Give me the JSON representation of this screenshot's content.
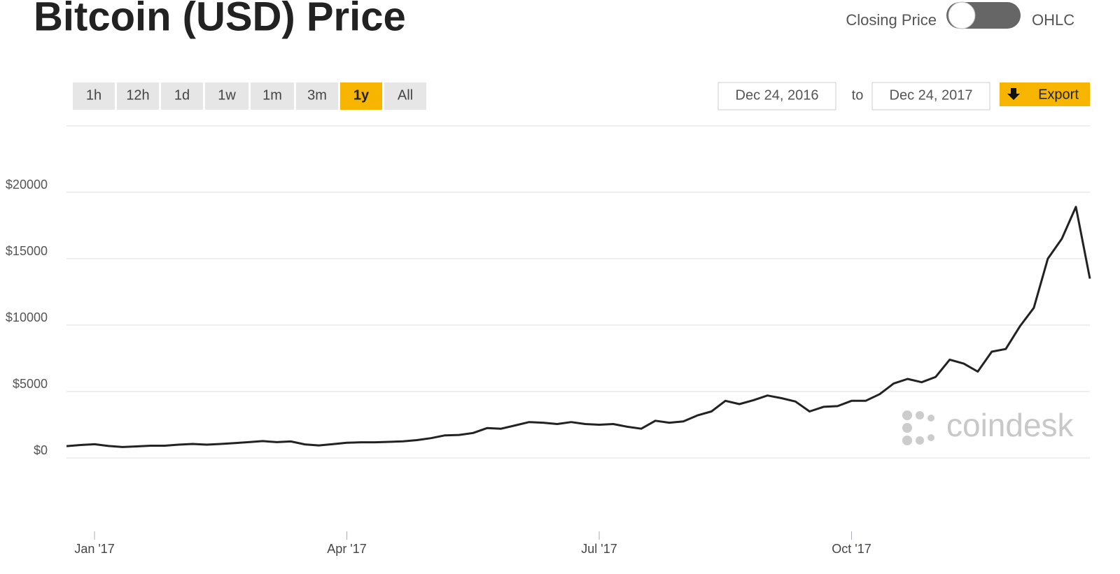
{
  "ui": {
    "toggle_left": "Closing Price",
    "toggle_right": "OHLC",
    "ranges": [
      {
        "label": "1h",
        "active": false
      },
      {
        "label": "12h",
        "active": false
      },
      {
        "label": "1d",
        "active": false
      },
      {
        "label": "1w",
        "active": false
      },
      {
        "label": "1m",
        "active": false
      },
      {
        "label": "3m",
        "active": false
      },
      {
        "label": "1y",
        "active": true
      },
      {
        "label": "All",
        "active": false
      }
    ],
    "date_from": "Dec 24, 2016",
    "date_sep": "to",
    "date_to": "Dec 24, 2017",
    "export": "Export",
    "watermark": "coindesk"
  },
  "chart_data": {
    "type": "line",
    "title": "Bitcoin (USD) Price",
    "categories": [
      null,
      null,
      "Jan '17",
      null,
      null,
      null,
      null,
      null,
      null,
      null,
      null,
      null,
      null,
      null,
      null,
      null,
      null,
      null,
      null,
      null,
      "Apr '17",
      null,
      null,
      null,
      null,
      null,
      null,
      null,
      null,
      null,
      null,
      null,
      null,
      null,
      null,
      null,
      null,
      null,
      "Jul '17",
      null,
      null,
      null,
      null,
      null,
      null,
      null,
      null,
      null,
      null,
      null,
      null,
      null,
      null,
      null,
      null,
      null,
      "Oct '17",
      null,
      null,
      null,
      null,
      null,
      null,
      null,
      null,
      null,
      null,
      null,
      null,
      null,
      null,
      null,
      null,
      null
    ],
    "series": [
      {
        "name": "Closing Price",
        "color": "#222222",
        "values": [
          890,
          975,
          1030,
          900,
          820,
          870,
          920,
          920,
          1000,
          1050,
          1000,
          1050,
          1120,
          1190,
          1270,
          1190,
          1240,
          1020,
          940,
          1040,
          1140,
          1180,
          1180,
          1210,
          1250,
          1340,
          1490,
          1700,
          1730,
          1880,
          2250,
          2200,
          2450,
          2700,
          2650,
          2550,
          2700,
          2550,
          2500,
          2550,
          2350,
          2200,
          2800,
          2650,
          2750,
          3200,
          3500,
          4300,
          4050,
          4350,
          4700,
          4500,
          4250,
          3500,
          3850,
          3900,
          4300,
          4300,
          4800,
          5600,
          5950,
          5700,
          6100,
          7400,
          7100,
          6500,
          8000,
          8200,
          9900,
          11300,
          15000,
          16500,
          18900,
          13500
        ]
      }
    ],
    "ylim": [
      -5000,
      25000
    ],
    "yticks": [
      {
        "value": 0,
        "label": "$0"
      },
      {
        "value": 5000,
        "label": "$5000"
      },
      {
        "value": 10000,
        "label": "$10000"
      },
      {
        "value": 15000,
        "label": "$15000"
      },
      {
        "value": 20000,
        "label": "$20000"
      }
    ],
    "grid": true
  }
}
